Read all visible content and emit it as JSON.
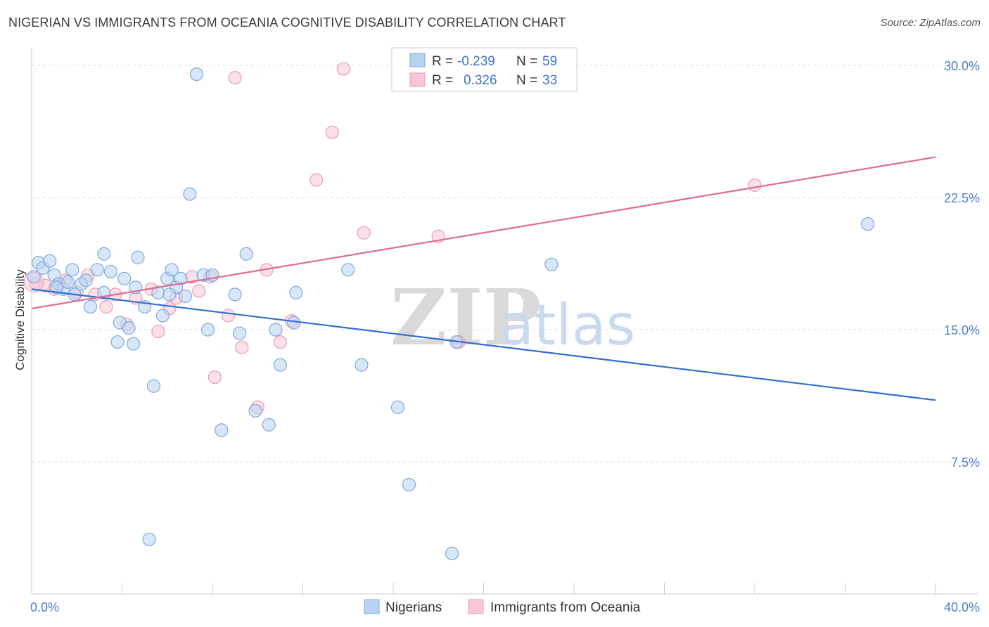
{
  "title": "NIGERIAN VS IMMIGRANTS FROM OCEANIA COGNITIVE DISABILITY CORRELATION CHART",
  "source": "Source: ZipAtlas.com",
  "watermark": {
    "zip": "ZIP",
    "atlas": "atlas"
  },
  "colors": {
    "blue_fill": "#b8d3f2",
    "blue_stroke": "#7ea8dc",
    "blue_line": "#2f6fd0",
    "pink_fill": "#f9c6d6",
    "pink_stroke": "#eb9ab5",
    "pink_line": "#e06b93",
    "grid": "#dddddd",
    "axis_label": "#4a7fc8"
  },
  "legend": {
    "rows": [
      {
        "r_label": "R =",
        "r_value": "-0.239",
        "n_label": "N =",
        "n_value": "59"
      },
      {
        "r_label": "R =",
        "r_value": "0.326",
        "n_label": "N =",
        "n_value": "33"
      }
    ]
  },
  "chart_data": {
    "type": "scatter",
    "title": "NIGERIAN VS IMMIGRANTS FROM OCEANIA COGNITIVE DISABILITY CORRELATION CHART",
    "xlabel": "",
    "ylabel": "Cognitive Disability",
    "xlim": [
      0,
      40
    ],
    "ylim": [
      0,
      31
    ],
    "x_tick_labels": [
      "0.0%",
      "40.0%"
    ],
    "y_ticks": [
      7.5,
      15.0,
      22.5,
      30.0
    ],
    "y_tick_labels": [
      "7.5%",
      "15.0%",
      "22.5%",
      "30.0%"
    ],
    "grid": true,
    "legend_placement": "top-center",
    "series": [
      {
        "name": "Nigerians",
        "trend": {
          "x": [
            0,
            40
          ],
          "y": [
            17.3,
            11.0
          ]
        },
        "points": [
          [
            0.3,
            18.8
          ],
          [
            0.5,
            18.5
          ],
          [
            0.8,
            18.9
          ],
          [
            1.0,
            18.1
          ],
          [
            1.2,
            17.6
          ],
          [
            1.4,
            17.3
          ],
          [
            1.6,
            17.7
          ],
          [
            1.8,
            18.4
          ],
          [
            1.9,
            17.0
          ],
          [
            2.2,
            17.6
          ],
          [
            2.6,
            16.3
          ],
          [
            2.9,
            18.4
          ],
          [
            3.2,
            17.1
          ],
          [
            3.5,
            18.3
          ],
          [
            3.8,
            14.3
          ],
          [
            3.9,
            15.4
          ],
          [
            4.1,
            17.9
          ],
          [
            4.3,
            15.1
          ],
          [
            4.5,
            14.2
          ],
          [
            4.6,
            17.4
          ],
          [
            5.0,
            16.3
          ],
          [
            5.2,
            3.1
          ],
          [
            5.4,
            11.8
          ],
          [
            5.6,
            17.1
          ],
          [
            5.8,
            15.8
          ],
          [
            6.0,
            17.9
          ],
          [
            6.2,
            18.4
          ],
          [
            6.4,
            17.4
          ],
          [
            6.6,
            17.9
          ],
          [
            6.8,
            16.9
          ],
          [
            7.0,
            22.7
          ],
          [
            7.3,
            29.5
          ],
          [
            7.6,
            18.1
          ],
          [
            7.8,
            15.0
          ],
          [
            8.0,
            18.1
          ],
          [
            8.4,
            9.3
          ],
          [
            9.0,
            17.0
          ],
          [
            9.2,
            14.8
          ],
          [
            9.5,
            19.3
          ],
          [
            9.9,
            10.4
          ],
          [
            10.5,
            9.6
          ],
          [
            10.8,
            15.0
          ],
          [
            11.0,
            13.0
          ],
          [
            11.6,
            15.4
          ],
          [
            11.7,
            17.1
          ],
          [
            4.7,
            19.1
          ],
          [
            3.2,
            19.3
          ],
          [
            2.4,
            17.8
          ],
          [
            14.0,
            18.4
          ],
          [
            14.6,
            13.0
          ],
          [
            16.2,
            10.6
          ],
          [
            16.7,
            6.2
          ],
          [
            18.6,
            2.3
          ],
          [
            18.8,
            14.3
          ],
          [
            23.0,
            18.7
          ],
          [
            37.0,
            21.0
          ],
          [
            0.1,
            18.0
          ],
          [
            6.1,
            17.0
          ],
          [
            1.1,
            17.4
          ]
        ]
      },
      {
        "name": "Immigrants from Oceania",
        "trend": {
          "x": [
            0,
            40
          ],
          "y": [
            16.2,
            24.8
          ]
        },
        "points": [
          [
            0.2,
            17.6
          ],
          [
            0.6,
            17.5
          ],
          [
            1.0,
            17.3
          ],
          [
            1.5,
            17.8
          ],
          [
            2.0,
            17.1
          ],
          [
            2.5,
            18.1
          ],
          [
            2.8,
            17.0
          ],
          [
            3.3,
            16.3
          ],
          [
            3.7,
            17.0
          ],
          [
            4.2,
            15.3
          ],
          [
            4.6,
            16.8
          ],
          [
            5.3,
            17.3
          ],
          [
            5.6,
            14.9
          ],
          [
            6.1,
            16.2
          ],
          [
            6.4,
            16.8
          ],
          [
            7.1,
            18.0
          ],
          [
            7.4,
            17.2
          ],
          [
            7.9,
            18.0
          ],
          [
            8.1,
            12.3
          ],
          [
            8.7,
            15.8
          ],
          [
            9.0,
            29.3
          ],
          [
            9.3,
            14.0
          ],
          [
            10.0,
            10.6
          ],
          [
            10.4,
            18.4
          ],
          [
            11.0,
            14.3
          ],
          [
            11.5,
            15.5
          ],
          [
            12.6,
            23.5
          ],
          [
            13.3,
            26.2
          ],
          [
            13.8,
            29.8
          ],
          [
            14.7,
            20.5
          ],
          [
            18.0,
            20.3
          ],
          [
            18.9,
            14.3
          ],
          [
            32.0,
            23.2
          ]
        ]
      }
    ]
  }
}
